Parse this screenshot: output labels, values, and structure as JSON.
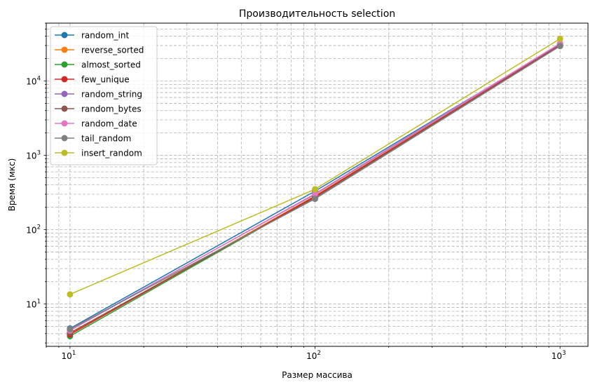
{
  "chart_data": {
    "type": "line",
    "title": "Производительность selection",
    "xlabel": "Размер массива",
    "ylabel": "Время (мкс)",
    "xscale": "log",
    "yscale": "log",
    "xlim": [
      8,
      1300
    ],
    "ylim": [
      2.7,
      60000
    ],
    "x": [
      10,
      100,
      1000
    ],
    "grid": true,
    "legend_position": "upper-left",
    "xticks": [
      {
        "value": 10,
        "base": "10",
        "exp": "1"
      },
      {
        "value": 100,
        "base": "10",
        "exp": "2"
      },
      {
        "value": 1000,
        "base": "10",
        "exp": "3"
      }
    ],
    "yticks": [
      {
        "value": 10,
        "base": "10",
        "exp": "1"
      },
      {
        "value": 100,
        "base": "10",
        "exp": "2"
      },
      {
        "value": 1000,
        "base": "10",
        "exp": "3"
      },
      {
        "value": 10000,
        "base": "10",
        "exp": "4"
      }
    ],
    "series": [
      {
        "name": "random_int",
        "color": "#1f77b4",
        "values": [
          4.7,
          330,
          31000
        ]
      },
      {
        "name": "reverse_sorted",
        "color": "#ff7f0e",
        "values": [
          4.0,
          285,
          30500
        ]
      },
      {
        "name": "almost_sorted",
        "color": "#2ca02c",
        "values": [
          3.7,
          275,
          30000
        ]
      },
      {
        "name": "few_unique",
        "color": "#d62728",
        "values": [
          3.9,
          280,
          30500
        ]
      },
      {
        "name": "random_string",
        "color": "#9467bd",
        "values": [
          4.5,
          300,
          31500
        ]
      },
      {
        "name": "random_bytes",
        "color": "#8c564b",
        "values": [
          4.1,
          270,
          30000
        ]
      },
      {
        "name": "random_date",
        "color": "#e377c2",
        "values": [
          4.4,
          305,
          32000
        ]
      },
      {
        "name": "tail_random",
        "color": "#7f7f7f",
        "values": [
          4.6,
          260,
          29500
        ]
      },
      {
        "name": "insert_random",
        "color": "#bcbd22",
        "values": [
          13.5,
          350,
          37000
        ]
      }
    ]
  }
}
